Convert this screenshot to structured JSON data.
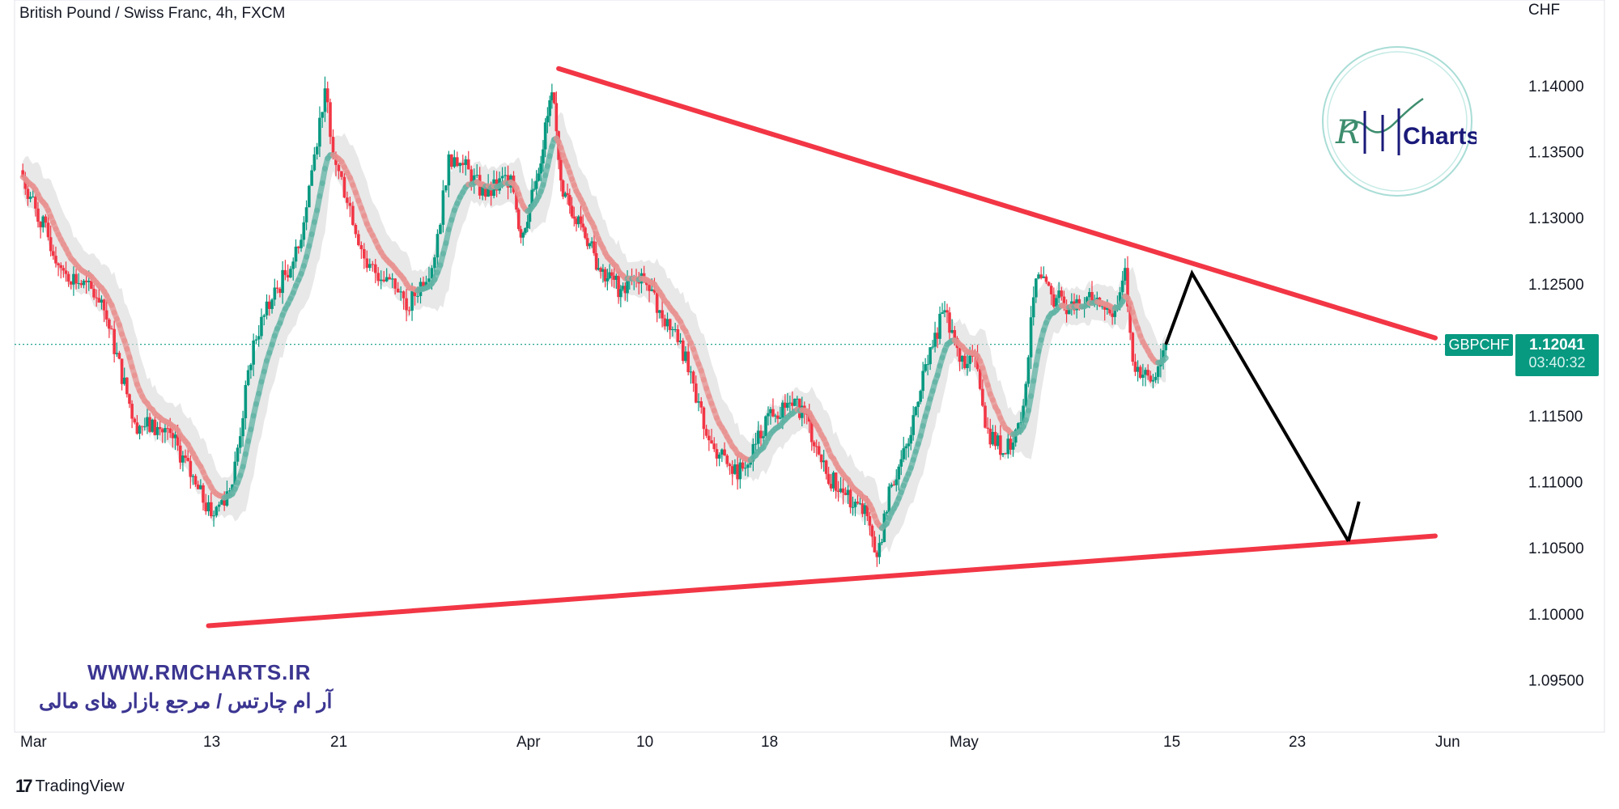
{
  "header": {
    "title": "British Pound / Swiss Franc, 4h, FXCM",
    "currency": "CHF"
  },
  "badge": {
    "symbol": "GBPCHF",
    "price": "1.12041",
    "countdown": "03:40:32"
  },
  "watermark": {
    "url": "WWW.RMCHARTS.IR",
    "tagline": "آر ام چارتس / مرجع بازار های مالی",
    "logo_text": "RM Charts"
  },
  "footer": {
    "brand": "TradingView"
  },
  "colors": {
    "up": "#089981",
    "down": "#f23645",
    "trendline": "#f23645",
    "arrow": "#000000",
    "ma_up": "#5fb3a4",
    "ma_down": "#e8908f",
    "band": "#d9d9d9",
    "watermark": "#3b3591"
  },
  "chart_data": {
    "type": "candlestick",
    "title": "British Pound / Swiss Franc, 4h, FXCM",
    "ylabel": "CHF",
    "ylim": [
      1.092,
      1.1465
    ],
    "yticks": [
      "1.14000",
      "1.13500",
      "1.13000",
      "1.12500",
      "1.11500",
      "1.11000",
      "1.10500",
      "1.10000",
      "1.09500"
    ],
    "xticks": [
      "Mar",
      "13",
      "21",
      "Apr",
      "10",
      "18",
      "May",
      "15",
      "23",
      "Jun"
    ],
    "last_price": 1.12041,
    "close_path": [
      [
        "03-01 00:00",
        1.1336
      ],
      [
        "03-01 16:00",
        1.1316
      ],
      [
        "03-03 16:00",
        1.1262
      ],
      [
        "03-06 08:00",
        1.1238
      ],
      [
        "03-08 12:00",
        1.1145
      ],
      [
        "03-10 20:00",
        1.1137
      ],
      [
        "03-12 12:00",
        1.1098
      ],
      [
        "03-13 12:00",
        1.1074
      ],
      [
        "03-14 20:00",
        1.1098
      ],
      [
        "03-16 04:00",
        1.1207
      ],
      [
        "03-17 08:00",
        1.1238
      ],
      [
        "03-19 00:00",
        1.1277
      ],
      [
        "03-20 00:00",
        1.1348
      ],
      [
        "03-20 16:00",
        1.1398
      ],
      [
        "03-21 08:00",
        1.134
      ],
      [
        "03-22 04:00",
        1.1309
      ],
      [
        "03-23 04:00",
        1.1262
      ],
      [
        "03-24 16:00",
        1.1254
      ],
      [
        "03-25 12:00",
        1.123
      ],
      [
        "03-27 04:00",
        1.127
      ],
      [
        "03-28 00:00",
        1.1348
      ],
      [
        "03-28 20:00",
        1.134
      ],
      [
        "03-30 04:00",
        1.1316
      ],
      [
        "03-31 16:00",
        1.1332
      ],
      [
        "04-01 08:00",
        1.1285
      ],
      [
        "04-02 12:00",
        1.1328
      ],
      [
        "04-03 16:00",
        1.1395
      ],
      [
        "04-04 12:00",
        1.1316
      ],
      [
        "04-05 16:00",
        1.1301
      ],
      [
        "04-07 04:00",
        1.1262
      ],
      [
        "04-08 20:00",
        1.1246
      ],
      [
        "04-10 08:00",
        1.1258
      ],
      [
        "04-11 12:00",
        1.123
      ],
      [
        "04-12 20:00",
        1.1207
      ],
      [
        "04-13 20:00",
        1.116
      ],
      [
        "04-14 20:00",
        1.1129
      ],
      [
        "04-16 04:00",
        1.1106
      ],
      [
        "04-17 04:00",
        1.1113
      ],
      [
        "04-18 12:00",
        1.1152
      ],
      [
        "04-20 00:00",
        1.116
      ],
      [
        "04-21 00:00",
        1.1152
      ],
      [
        "04-22 12:00",
        1.1106
      ],
      [
        "04-23 20:00",
        1.109
      ],
      [
        "04-25 08:00",
        1.1074
      ],
      [
        "04-26 00:00",
        1.1043
      ],
      [
        "04-27 00:00",
        1.1098
      ],
      [
        "04-28 04:00",
        1.1129
      ],
      [
        "04-29 04:00",
        1.1184
      ],
      [
        "04-30 16:00",
        1.123
      ],
      [
        "05-01 16:00",
        1.1191
      ],
      [
        "05-02 16:00",
        1.1195
      ],
      [
        "05-03 08:00",
        1.1141
      ],
      [
        "05-04 16:00",
        1.1121
      ],
      [
        "05-05 16:00",
        1.1145
      ],
      [
        "05-06 16:00",
        1.1254
      ],
      [
        "05-07 16:00",
        1.1242
      ],
      [
        "05-09 04:00",
        1.123
      ],
      [
        "05-10 12:00",
        1.1238
      ],
      [
        "05-11 20:00",
        1.123
      ],
      [
        "05-12 12:00",
        1.1262
      ],
      [
        "05-13 00:00",
        1.1191
      ],
      [
        "05-14 04:00",
        1.1176
      ],
      [
        "05-15 04:00",
        1.12041
      ]
    ],
    "drawings": {
      "upper_trendline": [
        [
          "04-04 04:00",
          1.1413
        ],
        [
          "06-01 00:00",
          1.1209
        ]
      ],
      "lower_trendline": [
        [
          "03-13 08:00",
          1.0991
        ],
        [
          "06-01 00:00",
          1.1059
        ]
      ],
      "projection_arrow": [
        [
          "05-15 04:00",
          1.1204
        ],
        [
          "05-16 20:00",
          1.1258
        ],
        [
          "05-26 16:00",
          1.1055
        ]
      ]
    }
  }
}
